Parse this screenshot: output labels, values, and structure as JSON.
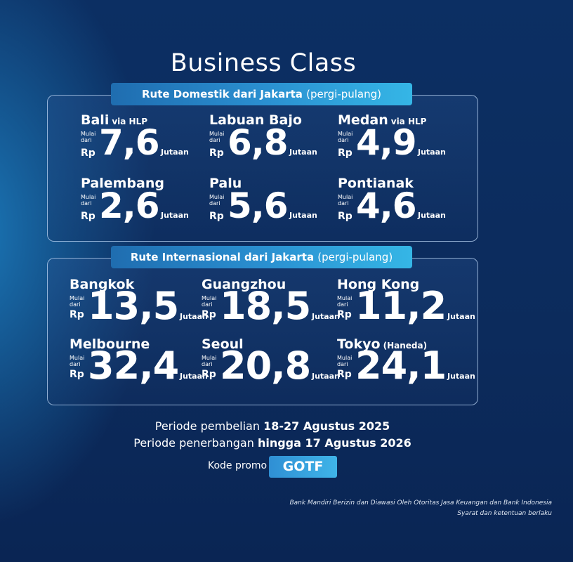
{
  "title": "Business Class",
  "labels": {
    "start_1": "Mulai",
    "start_2": "dari",
    "currency": "Rp",
    "unit": "Jutaan"
  },
  "domestic": {
    "heading": "Rute Domestik dari Jakarta",
    "heading_note": "(pergi-pulang)",
    "routes": [
      {
        "city": "Bali",
        "via": "via HLP",
        "price": "7,6"
      },
      {
        "city": "Labuan Bajo",
        "price": "6,8"
      },
      {
        "city": "Medan",
        "via": "via HLP",
        "price": "4,9"
      },
      {
        "city": "Palembang",
        "price": "2,6"
      },
      {
        "city": "Palu",
        "price": "5,6"
      },
      {
        "city": "Pontianak",
        "price": "4,6"
      }
    ]
  },
  "international": {
    "heading": "Rute Internasional dari Jakarta",
    "heading_note": "(pergi-pulang)",
    "routes": [
      {
        "city": "Bangkok",
        "price": "13,5"
      },
      {
        "city": "Guangzhou",
        "price": "18,5"
      },
      {
        "city": "Hong Kong",
        "price": "11,2"
      },
      {
        "city": "Melbourne",
        "price": "32,4"
      },
      {
        "city": "Seoul",
        "price": "20,8"
      },
      {
        "city": "Tokyo",
        "via": "(Haneda)",
        "price": "24,1"
      }
    ]
  },
  "footer": {
    "purchase_label": "Periode pembelian",
    "purchase_dates": "18-27 Agustus 2025",
    "flight_label": "Periode penerbangan",
    "flight_dates": "hingga 17 Agustus 2026",
    "promo_label": "Kode promo",
    "promo_code": "GOTF",
    "disclaimer_1": "Bank Mandiri Berizin dan Diawasi Oleh Otoritas Jasa Keuangan dan Bank Indonesia",
    "disclaimer_2": "Syarat dan ketentuan berlaku"
  }
}
